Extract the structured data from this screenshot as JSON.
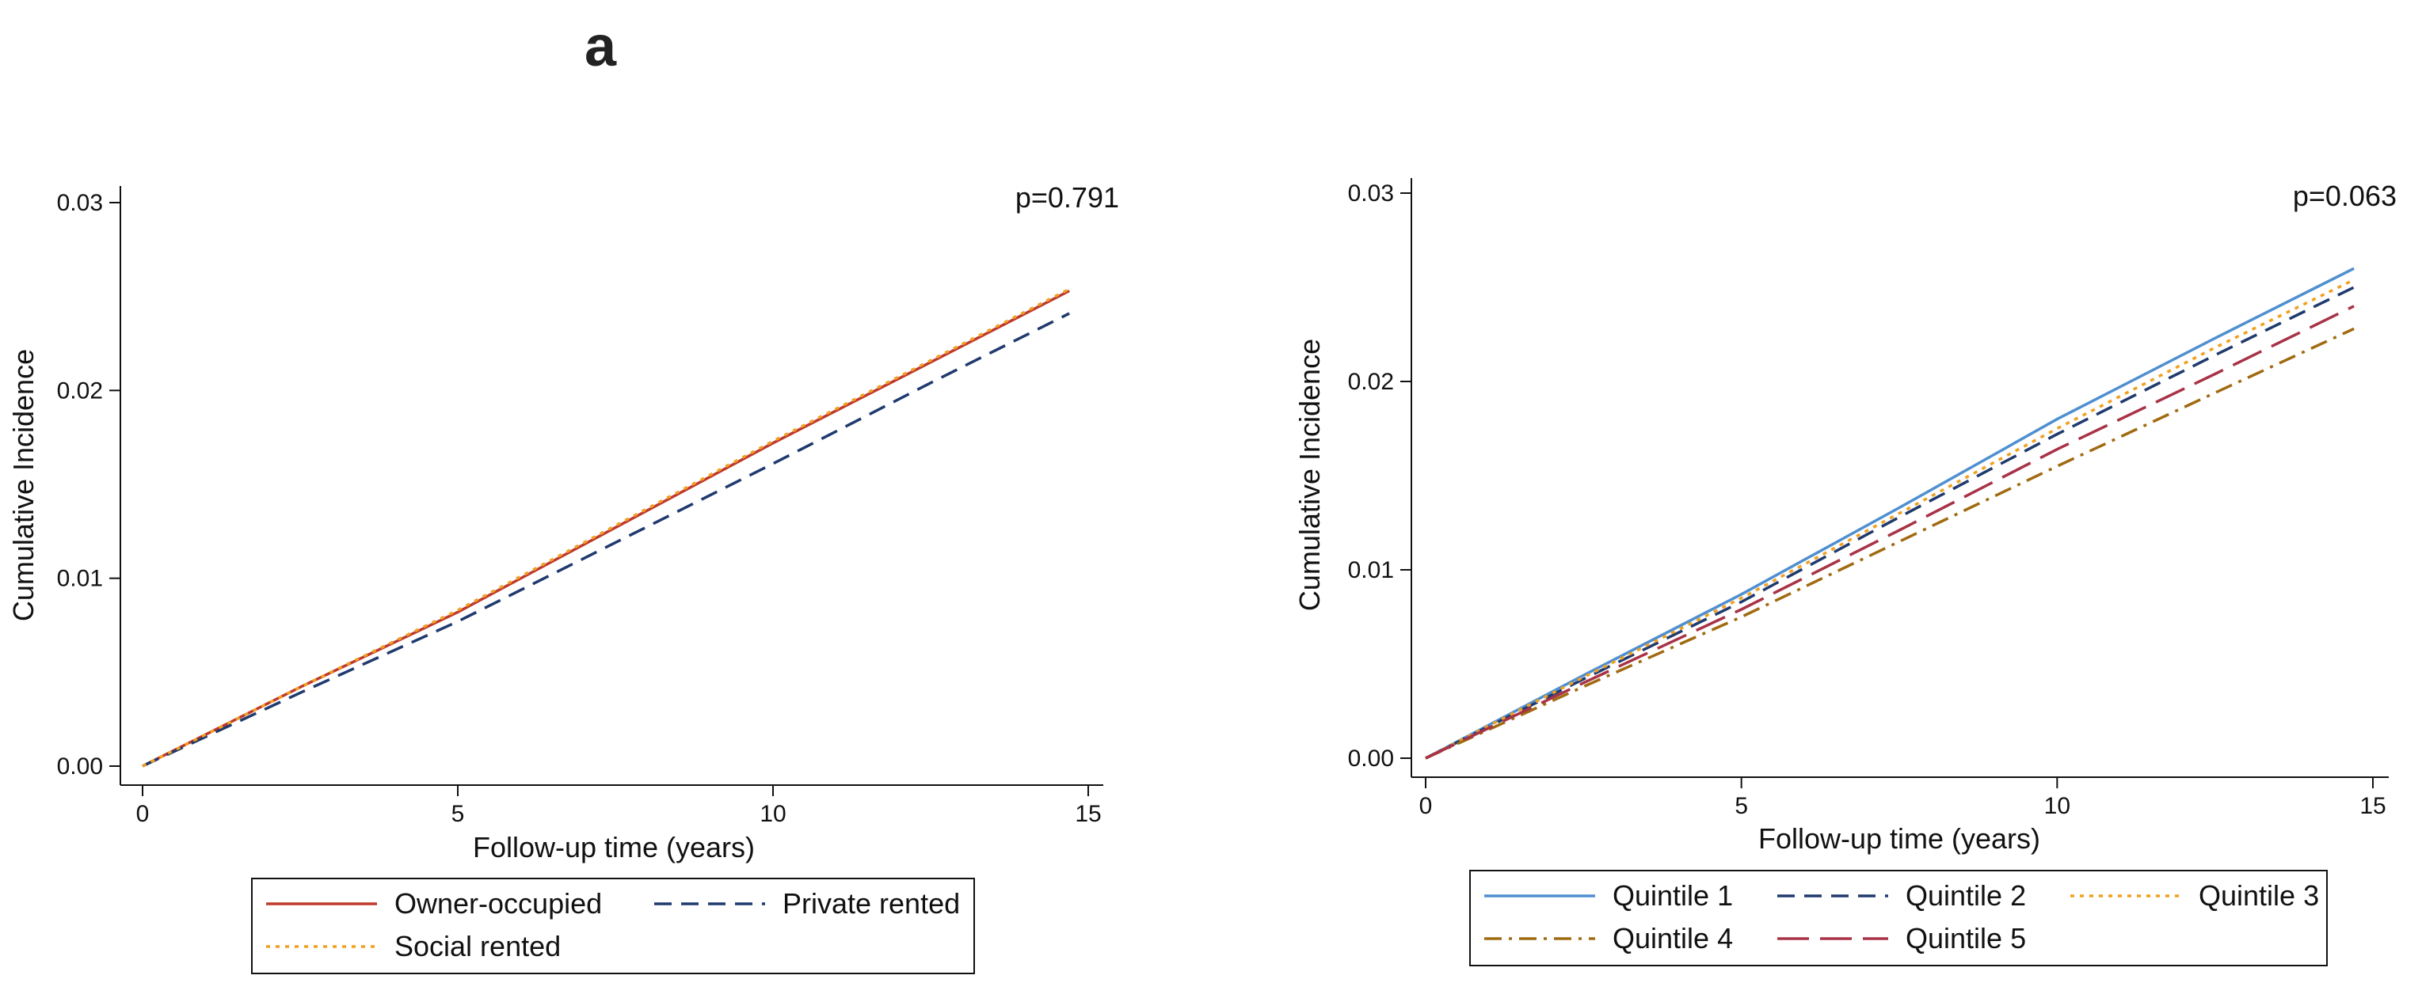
{
  "panel_label": "a",
  "chart_data": [
    {
      "type": "line",
      "title": "",
      "annotation": "p=0.791",
      "xlabel": "Follow-up time (years)",
      "ylabel": "Cumulative Incidence",
      "xlim": [
        0,
        15
      ],
      "ylim": [
        0,
        0.03
      ],
      "xticks": [
        0,
        5,
        10,
        15
      ],
      "xtick_labels": [
        "0",
        "5",
        "10",
        "15"
      ],
      "yticks": [
        0,
        0.01,
        0.02,
        0.03
      ],
      "ytick_labels": [
        "0.00",
        "0.01",
        "0.02",
        "0.03"
      ],
      "grid": false,
      "legend_position": "bottom",
      "legend_columns": 2,
      "series": [
        {
          "name": "Owner-occupied",
          "color": "#c0392b",
          "dash": "solid",
          "x": [
            0,
            2.5,
            5,
            7.5,
            10,
            12.5,
            14.7
          ],
          "y": [
            0,
            0.0042,
            0.0082,
            0.0127,
            0.0172,
            0.0215,
            0.0253
          ]
        },
        {
          "name": "Private rented",
          "color": "#1f3a6e",
          "dash": "dashed",
          "x": [
            0,
            2.5,
            5,
            7.5,
            10,
            12.5,
            14.7
          ],
          "y": [
            0,
            0.0039,
            0.0077,
            0.0119,
            0.0161,
            0.0204,
            0.0241
          ]
        },
        {
          "name": "Social rented",
          "color": "#f0a020",
          "dash": "dotted",
          "x": [
            0,
            2.5,
            5,
            7.5,
            10,
            12.5,
            14.7
          ],
          "y": [
            0,
            0.0042,
            0.0083,
            0.0128,
            0.0173,
            0.0216,
            0.0254
          ]
        }
      ]
    },
    {
      "type": "line",
      "title": "",
      "annotation": "p=0.063",
      "xlabel": "Follow-up time (years)",
      "ylabel": "Cumulative Incidence",
      "xlim": [
        0,
        15
      ],
      "ylim": [
        0,
        0.03
      ],
      "xticks": [
        0,
        5,
        10,
        15
      ],
      "xtick_labels": [
        "0",
        "5",
        "10",
        "15"
      ],
      "yticks": [
        0,
        0.01,
        0.02,
        0.03
      ],
      "ytick_labels": [
        "0.00",
        "0.01",
        "0.02",
        "0.03"
      ],
      "grid": false,
      "legend_position": "bottom",
      "legend_columns": 3,
      "series": [
        {
          "name": "Quintile 1",
          "color": "#4f8fd0",
          "dash": "solid",
          "x": [
            0,
            2.5,
            5,
            7.5,
            10,
            12.5,
            14.7
          ],
          "y": [
            0,
            0.0044,
            0.0087,
            0.0133,
            0.018,
            0.0223,
            0.026
          ]
        },
        {
          "name": "Quintile 2",
          "color": "#1f3a6e",
          "dash": "dashed",
          "x": [
            0,
            2.5,
            5,
            7.5,
            10,
            12.5,
            14.7
          ],
          "y": [
            0,
            0.0042,
            0.0083,
            0.0128,
            0.0172,
            0.0214,
            0.025
          ]
        },
        {
          "name": "Quintile 3",
          "color": "#f0a020",
          "dash": "dotted",
          "x": [
            0,
            2.5,
            5,
            7.5,
            10,
            12.5,
            14.7
          ],
          "y": [
            0,
            0.0043,
            0.0085,
            0.013,
            0.0175,
            0.0218,
            0.0254
          ]
        },
        {
          "name": "Quintile 4",
          "color": "#a06a10",
          "dash": "dashdot",
          "x": [
            0,
            2.5,
            5,
            7.5,
            10,
            12.5,
            14.7
          ],
          "y": [
            0,
            0.0038,
            0.0075,
            0.0115,
            0.0155,
            0.0194,
            0.0228
          ]
        },
        {
          "name": "Quintile 5",
          "color": "#a83246",
          "dash": "longdash",
          "x": [
            0,
            2.5,
            5,
            7.5,
            10,
            12.5,
            14.7
          ],
          "y": [
            0,
            0.004,
            0.0079,
            0.0121,
            0.0164,
            0.0204,
            0.024
          ]
        }
      ]
    }
  ]
}
